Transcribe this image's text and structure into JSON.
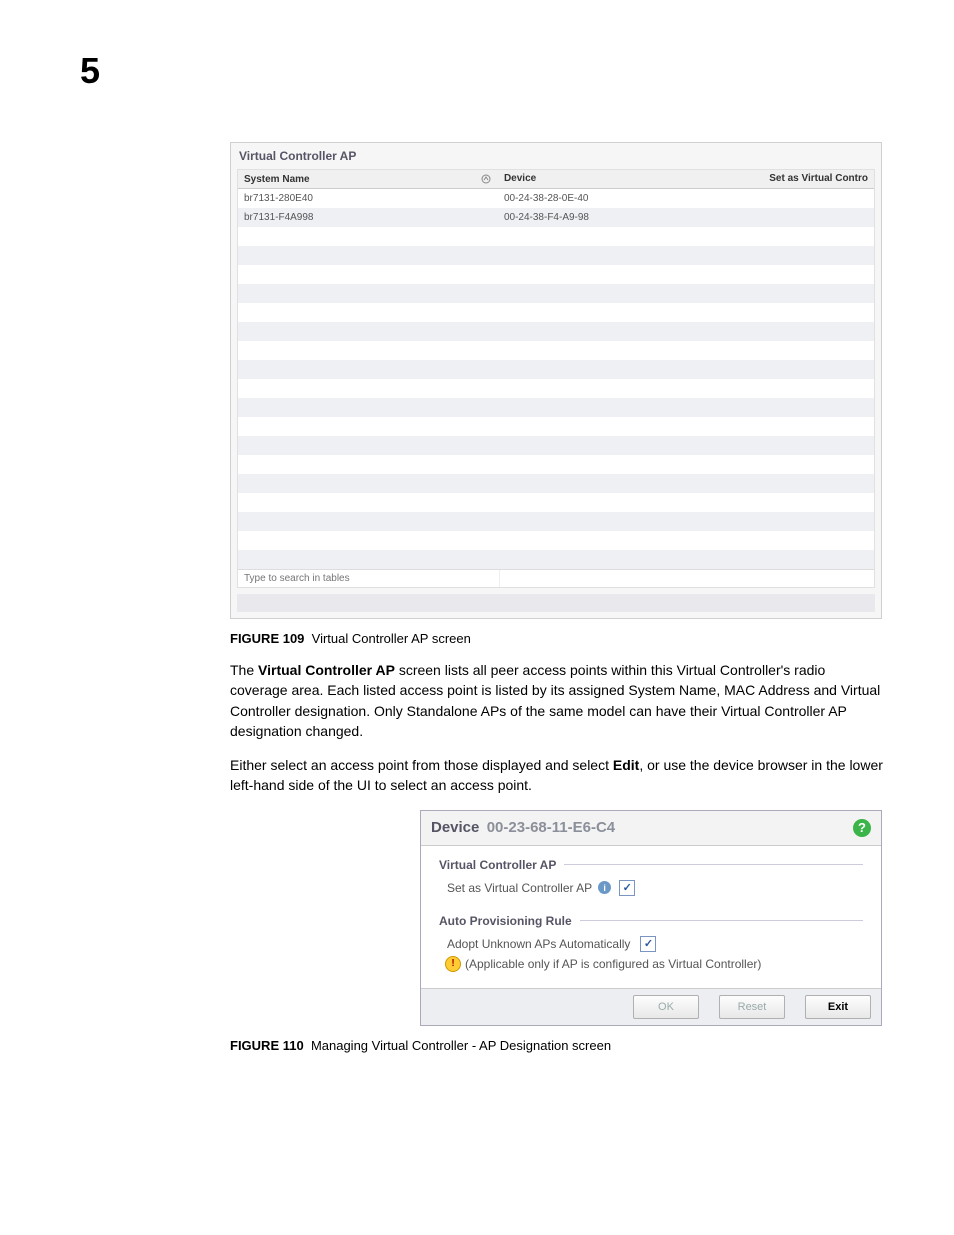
{
  "page_number": "5",
  "figure1": {
    "panel_title": "Virtual Controller AP",
    "columns": {
      "system_name": "System Name",
      "device": "Device",
      "set_as": "Set as Virtual Contro"
    },
    "rows": [
      {
        "system_name": "br7131-280E40",
        "device": "00-24-38-28-0E-40"
      },
      {
        "system_name": "br7131-F4A998",
        "device": "00-24-38-F4-A9-98"
      }
    ],
    "blank_rows": 18,
    "search_placeholder": "Type to search in tables"
  },
  "caption1": {
    "label": "FIGURE 109",
    "text": "Virtual Controller AP screen"
  },
  "para1_part1": "The ",
  "para1_bold": "Virtual Controller AP",
  "para1_part2": " screen lists all peer access points within this Virtual Controller's radio coverage area. Each listed access point is listed by its assigned System Name, MAC Address and Virtual Controller designation. Only Standalone APs of the same model can have their Virtual Controller AP designation changed.",
  "para2_part1": "Either select an access point from those displayed and select ",
  "para2_bold": "Edit",
  "para2_part2": ", or use the device browser in the lower left-hand side of the UI to select an access point.",
  "figure2": {
    "device_label": "Device",
    "device_mac": "00-23-68-11-E6-C4",
    "section1_title": "Virtual Controller AP",
    "section1_field": "Set as Virtual Controller AP",
    "section2_title": "Auto Provisioning Rule",
    "section2_field": "Adopt Unknown APs Automatically",
    "section2_note": "(Applicable only if AP is configured as Virtual Controller)",
    "buttons": {
      "ok": "OK",
      "reset": "Reset",
      "exit": "Exit"
    }
  },
  "caption2": {
    "label": "FIGURE 110",
    "text": "Managing Virtual Controller - AP Designation screen"
  }
}
